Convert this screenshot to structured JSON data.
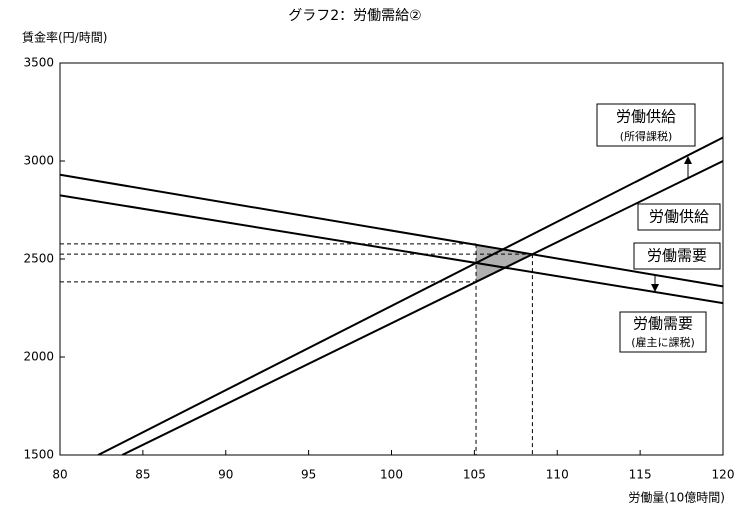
{
  "chart_data": {
    "type": "line",
    "title": "グラフ2：労働需給②",
    "y_label": "賃金率(円/時間)",
    "x_label": "労働量(10億時間)",
    "xlim": [
      80,
      120
    ],
    "ylim": [
      1500,
      3500
    ],
    "xticks": [
      80,
      85,
      90,
      95,
      100,
      105,
      110,
      115,
      120
    ],
    "yticks": [
      1500,
      2000,
      2500,
      3000,
      3500
    ],
    "grid": false,
    "series": [
      {
        "name": "労働需要",
        "color": "#000000",
        "x": [
          80,
          120
        ],
        "values": [
          2930,
          2360
        ]
      },
      {
        "name": "労働需要",
        "sub_label": "(雇主に課税)",
        "color": "#000000",
        "x": [
          80,
          120
        ],
        "values": [
          2825,
          2275
        ]
      },
      {
        "name": "労働供給",
        "color": "#000000",
        "x": [
          83.75,
          120
        ],
        "values": [
          1500,
          3000
        ]
      },
      {
        "name": "労働供給",
        "sub_label": "(所得課税)",
        "color": "#000000",
        "x": [
          82.3,
          120
        ],
        "values": [
          1500,
          3120
        ]
      }
    ],
    "reference_x": [
      105.1,
      108.5
    ],
    "reference_y": [
      2577,
      2525,
      2383
    ]
  }
}
